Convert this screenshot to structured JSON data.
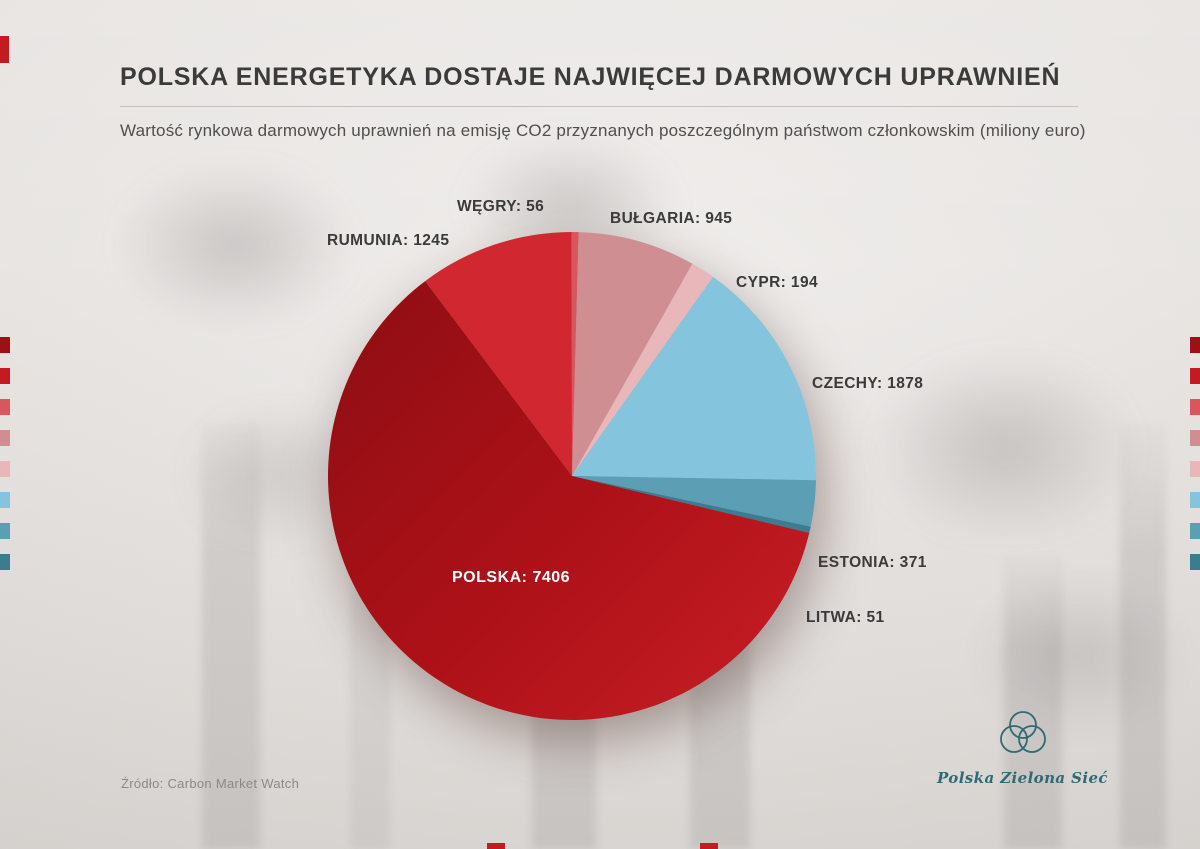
{
  "header": {
    "title": "POLSKA ENERGETYKA DOSTAJE NAJWIĘCEJ DARMOWYCH UPRAWNIEŃ",
    "subtitle": "Wartość rynkowa darmowych uprawnień na emisję CO2 przyznanych poszczególnym państwom członkowskim (miliony euro)"
  },
  "source": "Źródło: Carbon Market Watch",
  "logo": {
    "text": "Polska Zielona Sieć"
  },
  "decor": {
    "accent": "#c41b23",
    "logo_color": "#2e6b74"
  },
  "edge_swatches": [
    "#9c1016",
    "#c41b23",
    "#d8565c",
    "#cf8e92",
    "#e8b7ba",
    "#84c5dd",
    "#5c9fb4",
    "#3b7c90"
  ],
  "chart_data": {
    "type": "pie",
    "title": "Wartość rynkowa darmowych uprawnień na emisję CO2 przyznanych poszczególnym państwom członkowskim",
    "unit": "miliony euro",
    "legend_position": "edge-swatches",
    "start_angle_deg": -37,
    "slices": [
      {
        "name": "RUMUNIA",
        "value": 1245,
        "color": "#d02730",
        "display": "RUMUNIA: 1245"
      },
      {
        "name": "WĘGRY",
        "value": 56,
        "color": "#d8565c",
        "display": "WĘGRY: 56"
      },
      {
        "name": "BUŁGARIA",
        "value": 945,
        "color": "#cf8e92",
        "display": "BUŁGARIA: 945"
      },
      {
        "name": "CYPR",
        "value": 194,
        "color": "#e8b7ba",
        "display": "CYPR: 194"
      },
      {
        "name": "CZECHY",
        "value": 1878,
        "color": "#84c5dd",
        "display": "CZECHY: 1878"
      },
      {
        "name": "ESTONIA",
        "value": 371,
        "color": "#5c9fb4",
        "display": "ESTONIA: 371"
      },
      {
        "name": "LITWA",
        "value": 51,
        "color": "#3b7c90",
        "display": "LITWA: 51"
      },
      {
        "name": "POLSKA",
        "value": 7406,
        "color": "#ad1118",
        "color_dark": "#8d0e13",
        "color_light": "#c51d24",
        "gradient": true,
        "display": "POLSKA: 7406"
      }
    ]
  }
}
